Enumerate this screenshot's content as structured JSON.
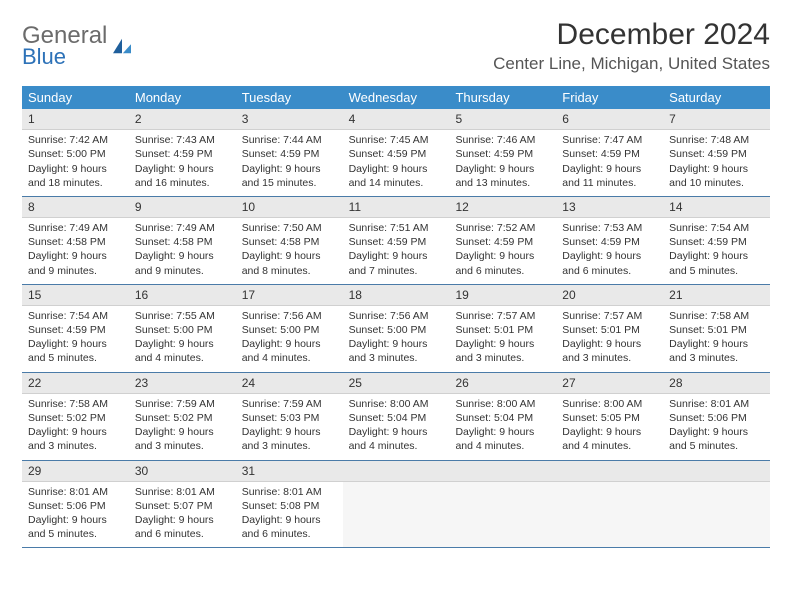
{
  "logo": {
    "word1": "General",
    "word2": "Blue"
  },
  "title": "December 2024",
  "location": "Center Line, Michigan, United States",
  "colors": {
    "header_bg": "#3a8cc9",
    "header_text": "#ffffff",
    "daynum_bg": "#e9e9e9",
    "row_border": "#4a7ba8",
    "logo_gray": "#6b6b6b",
    "logo_blue": "#2d72b8"
  },
  "daysOfWeek": [
    "Sunday",
    "Monday",
    "Tuesday",
    "Wednesday",
    "Thursday",
    "Friday",
    "Saturday"
  ],
  "weeks": [
    [
      {
        "num": "1",
        "sunrise": "Sunrise: 7:42 AM",
        "sunset": "Sunset: 5:00 PM",
        "dl1": "Daylight: 9 hours",
        "dl2": "and 18 minutes."
      },
      {
        "num": "2",
        "sunrise": "Sunrise: 7:43 AM",
        "sunset": "Sunset: 4:59 PM",
        "dl1": "Daylight: 9 hours",
        "dl2": "and 16 minutes."
      },
      {
        "num": "3",
        "sunrise": "Sunrise: 7:44 AM",
        "sunset": "Sunset: 4:59 PM",
        "dl1": "Daylight: 9 hours",
        "dl2": "and 15 minutes."
      },
      {
        "num": "4",
        "sunrise": "Sunrise: 7:45 AM",
        "sunset": "Sunset: 4:59 PM",
        "dl1": "Daylight: 9 hours",
        "dl2": "and 14 minutes."
      },
      {
        "num": "5",
        "sunrise": "Sunrise: 7:46 AM",
        "sunset": "Sunset: 4:59 PM",
        "dl1": "Daylight: 9 hours",
        "dl2": "and 13 minutes."
      },
      {
        "num": "6",
        "sunrise": "Sunrise: 7:47 AM",
        "sunset": "Sunset: 4:59 PM",
        "dl1": "Daylight: 9 hours",
        "dl2": "and 11 minutes."
      },
      {
        "num": "7",
        "sunrise": "Sunrise: 7:48 AM",
        "sunset": "Sunset: 4:59 PM",
        "dl1": "Daylight: 9 hours",
        "dl2": "and 10 minutes."
      }
    ],
    [
      {
        "num": "8",
        "sunrise": "Sunrise: 7:49 AM",
        "sunset": "Sunset: 4:58 PM",
        "dl1": "Daylight: 9 hours",
        "dl2": "and 9 minutes."
      },
      {
        "num": "9",
        "sunrise": "Sunrise: 7:49 AM",
        "sunset": "Sunset: 4:58 PM",
        "dl1": "Daylight: 9 hours",
        "dl2": "and 9 minutes."
      },
      {
        "num": "10",
        "sunrise": "Sunrise: 7:50 AM",
        "sunset": "Sunset: 4:58 PM",
        "dl1": "Daylight: 9 hours",
        "dl2": "and 8 minutes."
      },
      {
        "num": "11",
        "sunrise": "Sunrise: 7:51 AM",
        "sunset": "Sunset: 4:59 PM",
        "dl1": "Daylight: 9 hours",
        "dl2": "and 7 minutes."
      },
      {
        "num": "12",
        "sunrise": "Sunrise: 7:52 AM",
        "sunset": "Sunset: 4:59 PM",
        "dl1": "Daylight: 9 hours",
        "dl2": "and 6 minutes."
      },
      {
        "num": "13",
        "sunrise": "Sunrise: 7:53 AM",
        "sunset": "Sunset: 4:59 PM",
        "dl1": "Daylight: 9 hours",
        "dl2": "and 6 minutes."
      },
      {
        "num": "14",
        "sunrise": "Sunrise: 7:54 AM",
        "sunset": "Sunset: 4:59 PM",
        "dl1": "Daylight: 9 hours",
        "dl2": "and 5 minutes."
      }
    ],
    [
      {
        "num": "15",
        "sunrise": "Sunrise: 7:54 AM",
        "sunset": "Sunset: 4:59 PM",
        "dl1": "Daylight: 9 hours",
        "dl2": "and 5 minutes."
      },
      {
        "num": "16",
        "sunrise": "Sunrise: 7:55 AM",
        "sunset": "Sunset: 5:00 PM",
        "dl1": "Daylight: 9 hours",
        "dl2": "and 4 minutes."
      },
      {
        "num": "17",
        "sunrise": "Sunrise: 7:56 AM",
        "sunset": "Sunset: 5:00 PM",
        "dl1": "Daylight: 9 hours",
        "dl2": "and 4 minutes."
      },
      {
        "num": "18",
        "sunrise": "Sunrise: 7:56 AM",
        "sunset": "Sunset: 5:00 PM",
        "dl1": "Daylight: 9 hours",
        "dl2": "and 3 minutes."
      },
      {
        "num": "19",
        "sunrise": "Sunrise: 7:57 AM",
        "sunset": "Sunset: 5:01 PM",
        "dl1": "Daylight: 9 hours",
        "dl2": "and 3 minutes."
      },
      {
        "num": "20",
        "sunrise": "Sunrise: 7:57 AM",
        "sunset": "Sunset: 5:01 PM",
        "dl1": "Daylight: 9 hours",
        "dl2": "and 3 minutes."
      },
      {
        "num": "21",
        "sunrise": "Sunrise: 7:58 AM",
        "sunset": "Sunset: 5:01 PM",
        "dl1": "Daylight: 9 hours",
        "dl2": "and 3 minutes."
      }
    ],
    [
      {
        "num": "22",
        "sunrise": "Sunrise: 7:58 AM",
        "sunset": "Sunset: 5:02 PM",
        "dl1": "Daylight: 9 hours",
        "dl2": "and 3 minutes."
      },
      {
        "num": "23",
        "sunrise": "Sunrise: 7:59 AM",
        "sunset": "Sunset: 5:02 PM",
        "dl1": "Daylight: 9 hours",
        "dl2": "and 3 minutes."
      },
      {
        "num": "24",
        "sunrise": "Sunrise: 7:59 AM",
        "sunset": "Sunset: 5:03 PM",
        "dl1": "Daylight: 9 hours",
        "dl2": "and 3 minutes."
      },
      {
        "num": "25",
        "sunrise": "Sunrise: 8:00 AM",
        "sunset": "Sunset: 5:04 PM",
        "dl1": "Daylight: 9 hours",
        "dl2": "and 4 minutes."
      },
      {
        "num": "26",
        "sunrise": "Sunrise: 8:00 AM",
        "sunset": "Sunset: 5:04 PM",
        "dl1": "Daylight: 9 hours",
        "dl2": "and 4 minutes."
      },
      {
        "num": "27",
        "sunrise": "Sunrise: 8:00 AM",
        "sunset": "Sunset: 5:05 PM",
        "dl1": "Daylight: 9 hours",
        "dl2": "and 4 minutes."
      },
      {
        "num": "28",
        "sunrise": "Sunrise: 8:01 AM",
        "sunset": "Sunset: 5:06 PM",
        "dl1": "Daylight: 9 hours",
        "dl2": "and 5 minutes."
      }
    ],
    [
      {
        "num": "29",
        "sunrise": "Sunrise: 8:01 AM",
        "sunset": "Sunset: 5:06 PM",
        "dl1": "Daylight: 9 hours",
        "dl2": "and 5 minutes."
      },
      {
        "num": "30",
        "sunrise": "Sunrise: 8:01 AM",
        "sunset": "Sunset: 5:07 PM",
        "dl1": "Daylight: 9 hours",
        "dl2": "and 6 minutes."
      },
      {
        "num": "31",
        "sunrise": "Sunrise: 8:01 AM",
        "sunset": "Sunset: 5:08 PM",
        "dl1": "Daylight: 9 hours",
        "dl2": "and 6 minutes."
      },
      null,
      null,
      null,
      null
    ]
  ]
}
